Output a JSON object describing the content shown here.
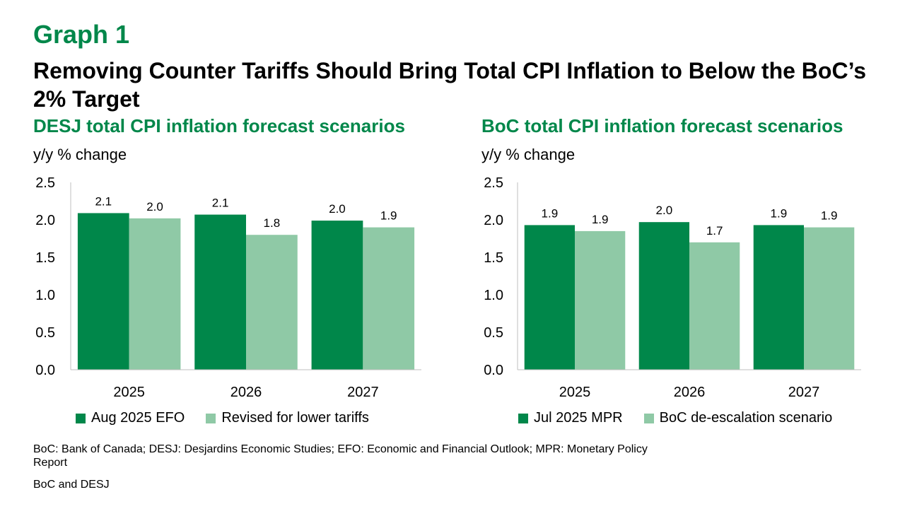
{
  "graph_label": "Graph 1",
  "headline": "Removing Counter Tariffs Should Bring Total CPI Inflation to Below the BoC’s 2% Target",
  "notes": "BoC: Bank of Canada; DESJ: Desjardins Economic Studies; EFO: Economic and Financial Outlook; MPR: Monetary Policy Report",
  "source": "BoC and DESJ",
  "colors": {
    "accent": "#00874A",
    "dark_series": "#00874A",
    "light_series": "#8FC9A6"
  },
  "chart_data": [
    {
      "type": "bar",
      "title": "DESJ total CPI inflation forecast scenarios",
      "ylabel": "y/y % change",
      "categories": [
        "2025",
        "2026",
        "2027"
      ],
      "ylim": [
        0,
        2.5
      ],
      "yticks": [
        "0.0",
        "0.5",
        "1.0",
        "1.5",
        "2.0",
        "2.5"
      ],
      "grid": false,
      "legend_position": "bottom",
      "series": [
        {
          "name": "Aug 2025 EFO",
          "values": [
            2.1,
            2.1,
            2.0
          ],
          "labels": [
            "2.1",
            "2.1",
            "2.0"
          ],
          "heights": [
            2.09,
            2.07,
            1.99
          ],
          "color": "#00874A"
        },
        {
          "name": "Revised for lower tariffs",
          "values": [
            2.0,
            1.8,
            1.9
          ],
          "labels": [
            "2.0",
            "1.8",
            "1.9"
          ],
          "heights": [
            2.02,
            1.8,
            1.9
          ],
          "color": "#8FC9A6"
        }
      ]
    },
    {
      "type": "bar",
      "title": "BoC total CPI inflation forecast scenarios",
      "ylabel": "y/y % change",
      "categories": [
        "2025",
        "2026",
        "2027"
      ],
      "ylim": [
        0,
        2.5
      ],
      "yticks": [
        "0.0",
        "0.5",
        "1.0",
        "1.5",
        "2.0",
        "2.5"
      ],
      "grid": false,
      "legend_position": "bottom",
      "series": [
        {
          "name": "Jul 2025 MPR",
          "values": [
            1.9,
            2.0,
            1.9
          ],
          "labels": [
            "1.9",
            "2.0",
            "1.9"
          ],
          "heights": [
            1.93,
            1.97,
            1.93
          ],
          "color": "#00874A"
        },
        {
          "name": "BoC de-escalation scenario",
          "values": [
            1.9,
            1.7,
            1.9
          ],
          "labels": [
            "1.9",
            "1.7",
            "1.9"
          ],
          "heights": [
            1.85,
            1.7,
            1.9
          ],
          "color": "#8FC9A6"
        }
      ]
    }
  ]
}
